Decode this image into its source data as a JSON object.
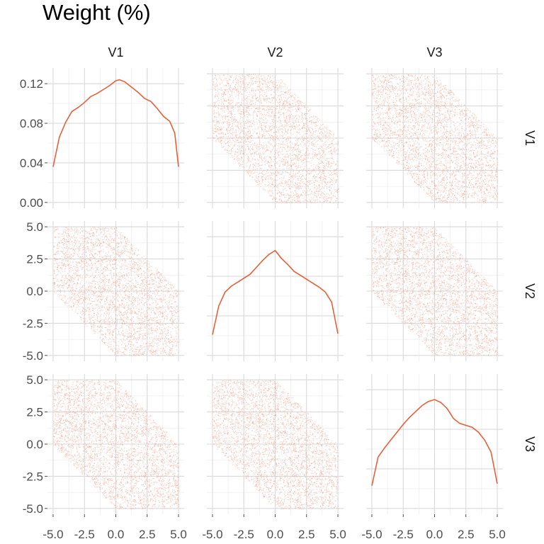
{
  "title": "Weight (%)",
  "colors": {
    "series": "#E6603A",
    "points": "#F0A48C",
    "grid": "#D9D9D9"
  },
  "chart_data": {
    "type": "scatter-matrix",
    "variables": [
      "V1",
      "V2",
      "V3"
    ],
    "diagonal": {
      "type": "density-line",
      "xlim": [
        -5,
        5
      ],
      "ylim": [
        0,
        0.13
      ],
      "y_ticks": [
        0.0,
        0.04,
        0.08,
        0.12
      ],
      "y_tick_labels": [
        "0.00",
        "0.04",
        "0.08",
        "0.12"
      ],
      "curves": {
        "V1": [
          [
            -5.0,
            0.036
          ],
          [
            -4.5,
            0.066
          ],
          [
            -4.0,
            0.081
          ],
          [
            -3.5,
            0.092
          ],
          [
            -3.0,
            0.096
          ],
          [
            -2.5,
            0.101
          ],
          [
            -2.0,
            0.107
          ],
          [
            -1.5,
            0.11
          ],
          [
            -1.0,
            0.114
          ],
          [
            -0.5,
            0.118
          ],
          [
            0.0,
            0.123
          ],
          [
            0.3,
            0.124
          ],
          [
            0.7,
            0.122
          ],
          [
            1.2,
            0.117
          ],
          [
            1.8,
            0.111
          ],
          [
            2.3,
            0.105
          ],
          [
            2.8,
            0.102
          ],
          [
            3.3,
            0.095
          ],
          [
            3.8,
            0.087
          ],
          [
            4.3,
            0.082
          ],
          [
            4.7,
            0.07
          ],
          [
            5.0,
            0.036
          ]
        ],
        "V2": [
          [
            -5.0,
            0.021
          ],
          [
            -4.5,
            0.05
          ],
          [
            -4.0,
            0.064
          ],
          [
            -3.5,
            0.07
          ],
          [
            -3.0,
            0.074
          ],
          [
            -2.5,
            0.078
          ],
          [
            -2.0,
            0.082
          ],
          [
            -1.5,
            0.089
          ],
          [
            -1.0,
            0.096
          ],
          [
            -0.5,
            0.102
          ],
          [
            0.0,
            0.106
          ],
          [
            0.5,
            0.098
          ],
          [
            1.0,
            0.092
          ],
          [
            1.5,
            0.085
          ],
          [
            2.0,
            0.081
          ],
          [
            2.5,
            0.077
          ],
          [
            3.0,
            0.073
          ],
          [
            3.5,
            0.069
          ],
          [
            4.0,
            0.064
          ],
          [
            4.5,
            0.054
          ],
          [
            5.0,
            0.022
          ]
        ],
        "V3": [
          [
            -5.0,
            0.023
          ],
          [
            -4.5,
            0.052
          ],
          [
            -4.0,
            0.061
          ],
          [
            -3.5,
            0.069
          ],
          [
            -3.0,
            0.077
          ],
          [
            -2.5,
            0.085
          ],
          [
            -2.0,
            0.092
          ],
          [
            -1.5,
            0.098
          ],
          [
            -1.0,
            0.104
          ],
          [
            -0.5,
            0.108
          ],
          [
            0.0,
            0.11
          ],
          [
            0.5,
            0.107
          ],
          [
            1.0,
            0.101
          ],
          [
            1.5,
            0.091
          ],
          [
            2.0,
            0.086
          ],
          [
            2.5,
            0.084
          ],
          [
            3.0,
            0.082
          ],
          [
            3.5,
            0.077
          ],
          [
            4.0,
            0.069
          ],
          [
            4.5,
            0.057
          ],
          [
            5.0,
            0.025
          ]
        ]
      }
    },
    "off_diagonal": {
      "type": "scatter",
      "xlim": [
        -5,
        5
      ],
      "ylim": [
        -5,
        5
      ],
      "constraint": "x + y between -5 and 5",
      "n_points": 3500
    },
    "x_ticks": [
      -5.0,
      -2.5,
      0.0,
      2.5,
      5.0
    ],
    "x_tick_labels": [
      "-5.0",
      "-2.5",
      "0.0",
      "2.5",
      "5.0"
    ],
    "y_ticks": [
      -5.0,
      -2.5,
      0.0,
      2.5,
      5.0
    ],
    "y_tick_labels": [
      "-5.0",
      "-2.5",
      "0.0",
      "2.5",
      "5.0"
    ],
    "grid": true,
    "legend": "none"
  }
}
